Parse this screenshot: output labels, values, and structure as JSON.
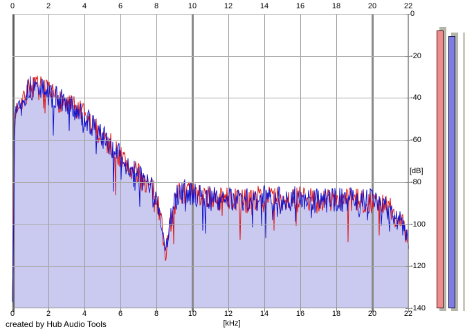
{
  "app": {
    "footer_credit": "created by Hub Audio Tools"
  },
  "chart_data": {
    "type": "line",
    "title": "",
    "xlabel": "[kHz]",
    "ylabel": "[dB]",
    "xlim": [
      0,
      22
    ],
    "ylim": [
      -140,
      0
    ],
    "x_ticks": [
      0,
      2,
      4,
      6,
      8,
      10,
      12,
      14,
      16,
      18,
      20,
      22
    ],
    "x_major_ticks": [
      0,
      10,
      20
    ],
    "y_ticks": [
      0,
      -20,
      -40,
      -60,
      -80,
      -100,
      -120,
      -140
    ],
    "grid": true,
    "legend": "none",
    "series": [
      {
        "name": "spectrum-channel-red",
        "color": "#dd1515",
        "seed": 7,
        "fill": null
      },
      {
        "name": "spectrum-channel-blue",
        "color": "#1212cc",
        "seed": 13,
        "fill": "#cacaf0"
      }
    ],
    "envelope_db": [
      [
        0,
        -137
      ],
      [
        0.06,
        -100
      ],
      [
        0.12,
        -55
      ],
      [
        0.2,
        -45
      ],
      [
        0.35,
        -43
      ],
      [
        0.6,
        -39
      ],
      [
        0.9,
        -36
      ],
      [
        1.2,
        -35
      ],
      [
        1.5,
        -35
      ],
      [
        1.8,
        -37
      ],
      [
        2.2,
        -39
      ],
      [
        2.6,
        -41
      ],
      [
        3,
        -43
      ],
      [
        3.4,
        -45
      ],
      [
        3.8,
        -47
      ],
      [
        4.2,
        -51
      ],
      [
        4.6,
        -55
      ],
      [
        5,
        -58
      ],
      [
        5.4,
        -62
      ],
      [
        5.8,
        -66
      ],
      [
        6.2,
        -70
      ],
      [
        6.6,
        -74
      ],
      [
        7,
        -77
      ],
      [
        7.4,
        -80
      ],
      [
        7.8,
        -84
      ],
      [
        8.1,
        -91
      ],
      [
        8.35,
        -105
      ],
      [
        8.5,
        -116
      ],
      [
        8.65,
        -106
      ],
      [
        8.9,
        -93
      ],
      [
        9.2,
        -86
      ],
      [
        9.6,
        -84
      ],
      [
        10,
        -86
      ],
      [
        10.5,
        -87
      ],
      [
        11,
        -88
      ],
      [
        12,
        -88
      ],
      [
        13,
        -89
      ],
      [
        14,
        -87
      ],
      [
        15,
        -88
      ],
      [
        16,
        -88
      ],
      [
        17,
        -89
      ],
      [
        18,
        -88
      ],
      [
        19,
        -89
      ],
      [
        20,
        -89
      ],
      [
        20.6,
        -91
      ],
      [
        21.1,
        -94
      ],
      [
        21.6,
        -99
      ],
      [
        22,
        -106
      ]
    ],
    "noise": {
      "spread_db": 6,
      "spread_db_low_freq": 4,
      "deep_spike_prob": 0.055,
      "deep_spike_extra_db": [
        5,
        16
      ]
    }
  },
  "meters": {
    "unit": "dB",
    "range_db": [
      -140,
      0
    ],
    "bars": [
      {
        "name": "left",
        "color": "#f28b8b",
        "border": "#3a1212",
        "value_db": -8,
        "peak_db": -7
      },
      {
        "name": "right",
        "color": "#7d7de4",
        "border": "#12123a",
        "value_db": -10.5,
        "peak_db": -9.5
      }
    ],
    "peak_color": "#b5b5aa",
    "edge_sliver_color": "#c8c8bd"
  }
}
